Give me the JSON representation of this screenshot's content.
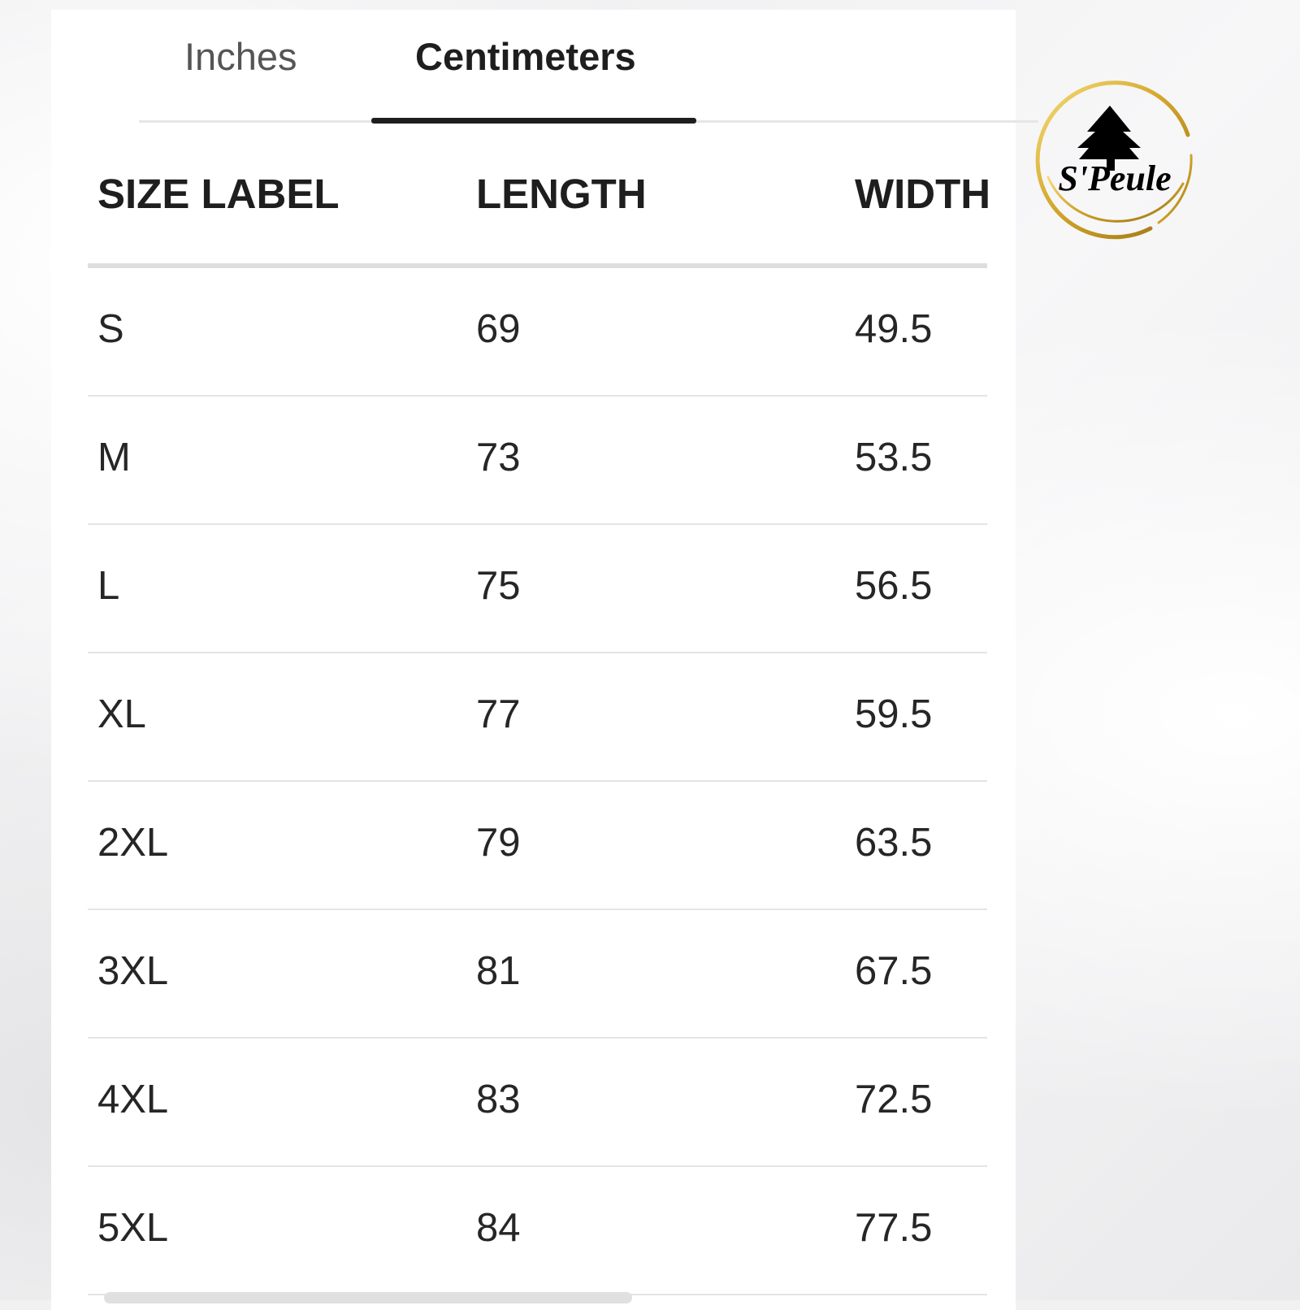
{
  "tabs": [
    {
      "label": "Inches",
      "active": false
    },
    {
      "label": "Centimeters",
      "active": true
    }
  ],
  "table": {
    "headers": [
      "SIZE LABEL",
      "LENGTH",
      "WIDTH"
    ],
    "rows": [
      [
        "S",
        "69",
        "49.5"
      ],
      [
        "M",
        "73",
        "53.5"
      ],
      [
        "L",
        "75",
        "56.5"
      ],
      [
        "XL",
        "77",
        "59.5"
      ],
      [
        "2XL",
        "79",
        "63.5"
      ],
      [
        "3XL",
        "81",
        "67.5"
      ],
      [
        "4XL",
        "83",
        "72.5"
      ],
      [
        "5XL",
        "84",
        "77.5"
      ]
    ]
  },
  "logo": {
    "text": "S'Peule",
    "icon": "house-logo-icon",
    "ring_color": "#d4a72c"
  },
  "colors": {
    "active_tab": "#1e1e1e",
    "inactive_tab": "#555555",
    "divider": "#e4e4e4"
  }
}
